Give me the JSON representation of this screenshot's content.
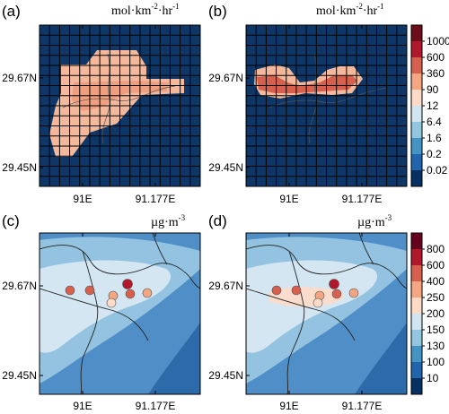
{
  "panels": {
    "a": {
      "letter": "(a)",
      "unit_main": "mol·km",
      "unit_sup1": "-2",
      "unit_mid": "·hr",
      "unit_sup2": "-1"
    },
    "b": {
      "letter": "(b)",
      "unit_main": "mol·km",
      "unit_sup1": "-2",
      "unit_mid": "·hr",
      "unit_sup2": "-1"
    },
    "c": {
      "letter": "(c)",
      "unit_main": "µg·m",
      "unit_sup1": "-3"
    },
    "d": {
      "letter": "(d)",
      "unit_main": "µg·m",
      "unit_sup1": "-3"
    }
  },
  "axes": {
    "lat_ticks": [
      "29.67N",
      "29.45N"
    ],
    "lon_ticks": [
      "91E",
      "91.177E"
    ]
  },
  "colorbar_emission": {
    "labels": [
      "1000",
      "600",
      "360",
      "90",
      "12",
      "6.4",
      "1.6",
      "0.2",
      "0.02"
    ],
    "colors": [
      "#6e0d1a",
      "#b2182b",
      "#d6604d",
      "#f4a582",
      "#fddbc7",
      "#d1e5f0",
      "#92c5de",
      "#4393c3",
      "#2166ac",
      "#053061"
    ]
  },
  "colorbar_conc": {
    "labels": [
      "800",
      "600",
      "400",
      "250",
      "200",
      "150",
      "130",
      "100",
      "10"
    ],
    "colors": [
      "#67001f",
      "#b2182b",
      "#d6604d",
      "#f4a582",
      "#fddbc7",
      "#d1e5f0",
      "#92c5de",
      "#4393c3",
      "#2166ac",
      "#053061"
    ]
  },
  "map_colors": {
    "deep_blue": "#0e3768",
    "mid_blue": "#4f8ec6",
    "light_blue": "#93c3e0",
    "pale_blue": "#d3e6f1",
    "peach": "#f4b89c",
    "pale_peach": "#f9dccb",
    "dark_red": "#b2182b",
    "red": "#d6604d",
    "salmon": "#e89278"
  }
}
